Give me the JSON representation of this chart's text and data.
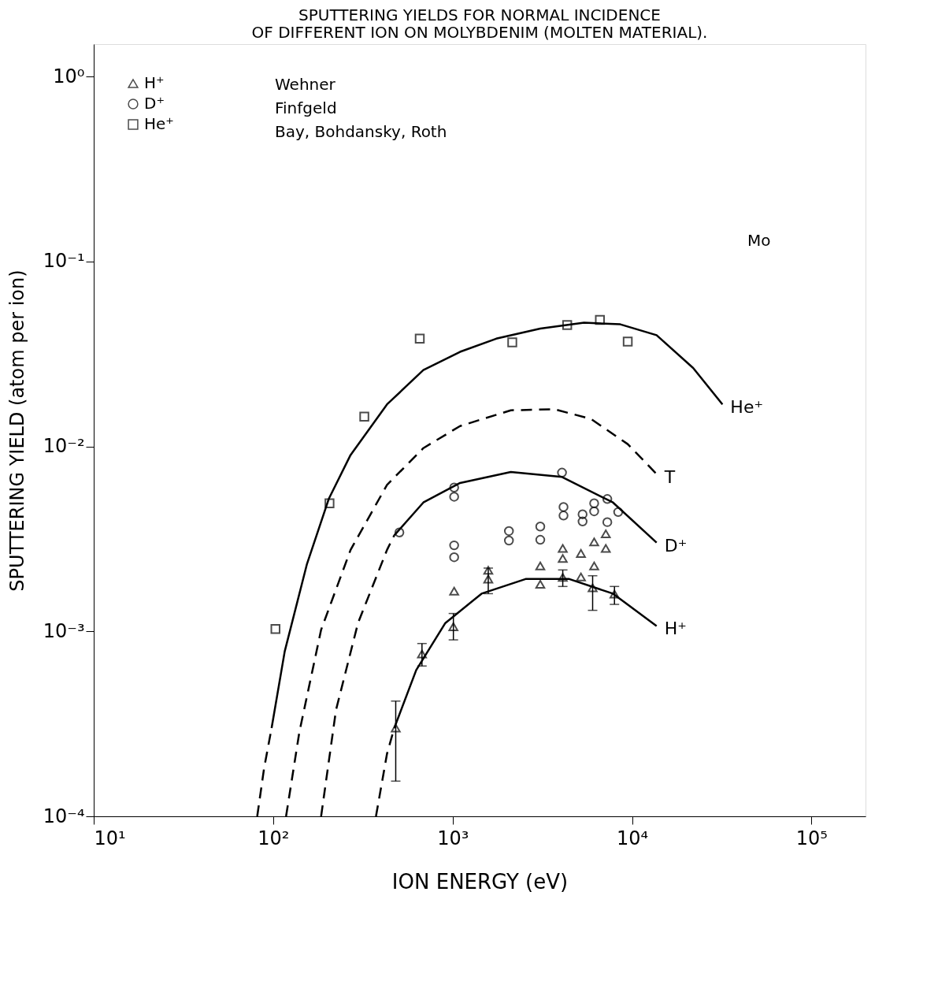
{
  "chart_data": {
    "type": "line",
    "title": "SPUTTERING YIELDS FOR NORMAL INCIDENCE\nOF DIFFERENT ION ON MOLYBDENIM (MOLTEN MATERIAL).",
    "xlabel": "ION ENERGY (eV)",
    "ylabel": "SPUTTERING YIELD (atom per ion)",
    "log": "xy",
    "grid": false,
    "legend": "top left",
    "xlim": [
      10,
      200000
    ],
    "ylim": [
      0.0001,
      1.5
    ],
    "xticks": [
      {
        "value": 10,
        "label": "10¹"
      },
      {
        "value": 100,
        "label": "10²"
      },
      {
        "value": 1000,
        "label": "10³"
      },
      {
        "value": 10000,
        "label": "10⁴"
      },
      {
        "value": 100000,
        "label": "10⁵"
      }
    ],
    "yticks": [
      {
        "value": 0.0001,
        "label": "10⁻⁴"
      },
      {
        "value": 0.001,
        "label": "10⁻³"
      },
      {
        "value": 0.01,
        "label": "10⁻²"
      },
      {
        "value": 0.1,
        "label": "10⁻¹"
      },
      {
        "value": 1,
        "label": "10⁰"
      }
    ],
    "annotations": [
      "Wehner",
      "Finfgeld",
      "Bay, Bohdansky, Roth",
      "Mo"
    ],
    "series": [
      {
        "line_style": "dashed",
        "marker": "none",
        "color": "#000000",
        "x": [
          81.5,
          89,
          98
        ],
        "values": [
          0.0001,
          0.000182,
          0.0003
        ]
      },
      {
        "name": "He⁺",
        "line_style": "solid",
        "marker": "none",
        "color": "#000000",
        "x": [
          98,
          116,
          154,
          204,
          270,
          431,
          687,
          1100,
          1750,
          3080,
          5400,
          8600,
          13700,
          21900,
          31900
        ],
        "values": [
          0.0003,
          0.00078,
          0.0023,
          0.0052,
          0.009,
          0.0169,
          0.0259,
          0.0325,
          0.0383,
          0.0434,
          0.0467,
          0.0458,
          0.04,
          0.0266,
          0.0169
        ]
      },
      {
        "name": "T",
        "line_style": "dashed",
        "marker": "none",
        "color": "#000000",
        "x": [
          118,
          140,
          185,
          270,
          431,
          687,
          1100,
          2110,
          3700,
          5900,
          9460,
          13700
        ],
        "values": [
          0.0001,
          0.000286,
          0.00102,
          0.00276,
          0.0062,
          0.0098,
          0.0129,
          0.0157,
          0.0159,
          0.0141,
          0.0103,
          0.0071
        ]
      },
      {
        "line_style": "dashed",
        "marker": "none",
        "color": "#000000",
        "x": [
          185,
          224,
          297,
          431,
          473
        ],
        "values": [
          0.0001,
          0.000376,
          0.00111,
          0.00276,
          0.00331
        ]
      },
      {
        "name": "D⁺",
        "line_style": "solid",
        "marker": "none",
        "color": "#000000",
        "x": [
          473,
          687,
          1100,
          2110,
          4070,
          7830,
          13700
        ],
        "values": [
          0.00331,
          0.00498,
          0.00635,
          0.00728,
          0.00684,
          0.00498,
          0.00302
        ]
      },
      {
        "line_style": "dashed",
        "marker": "none",
        "color": "#000000",
        "x": [
          374,
          431,
          473
        ],
        "values": [
          0.0001,
          0.000218,
          0.0003
        ]
      },
      {
        "name": "H⁺",
        "line_style": "solid",
        "marker": "none",
        "color": "#000000",
        "x": [
          473,
          627,
          911,
          1450,
          2550,
          4470,
          7830,
          13700
        ],
        "values": [
          0.0003,
          0.000618,
          0.00111,
          0.0016,
          0.00192,
          0.00192,
          0.0016,
          0.00107
        ]
      },
      {
        "type": "scatter",
        "name": "H⁺",
        "marker": "triangle",
        "color": "#000000",
        "x": [
          482,
          675,
          1010,
          1020,
          1580,
          1580,
          3080,
          3080,
          4110,
          4110,
          4110,
          5190,
          5190,
          6030,
          6150,
          6150,
          7140,
          7140,
          7980
        ],
        "values": [
          0.0003,
          0.000755,
          0.00106,
          0.00165,
          0.00214,
          0.00192,
          0.0018,
          0.00226,
          0.00196,
          0.00248,
          0.00281,
          0.00197,
          0.00264,
          0.00172,
          0.00226,
          0.00305,
          0.00337,
          0.00281,
          0.00159
        ],
        "errors": [
          [
            0.000155,
            0.00042
          ],
          [
            0.00065,
            0.00086
          ],
          [
            0.0009,
            0.00125
          ],
          null,
          null,
          [
            0.0016,
            0.0022
          ],
          null,
          null,
          [
            0.00175,
            0.00215
          ],
          null,
          null,
          null,
          null,
          [
            0.0013,
            0.002
          ],
          null,
          null,
          null,
          null,
          [
            0.0014,
            0.00175
          ]
        ]
      },
      {
        "type": "scatter",
        "name": "D⁺",
        "marker": "circle",
        "color": "#000000",
        "x": [
          505,
          1020,
          1020,
          1020,
          1020,
          2060,
          2060,
          3080,
          3080,
          4070,
          4150,
          4150,
          5300,
          5300,
          6150,
          6150,
          7280,
          7280,
          8370
        ],
        "values": [
          0.00343,
          0.006,
          0.00535,
          0.00292,
          0.00252,
          0.00349,
          0.0031,
          0.00369,
          0.00313,
          0.00722,
          0.00471,
          0.00423,
          0.0043,
          0.00393,
          0.00493,
          0.00446,
          0.0052,
          0.0039,
          0.00442
        ]
      },
      {
        "type": "scatter",
        "name": "He⁺",
        "marker": "square",
        "color": "#000000",
        "x": [
          103,
          206,
          322,
          656,
          2150,
          4350,
          6620,
          9460
        ],
        "values": [
          0.00103,
          0.00493,
          0.0145,
          0.0383,
          0.0366,
          0.0454,
          0.0484,
          0.0369
        ]
      }
    ]
  }
}
